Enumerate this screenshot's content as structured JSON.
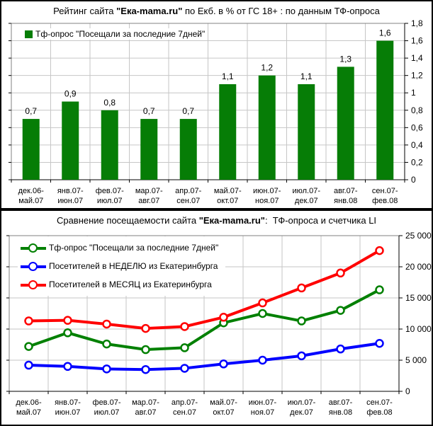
{
  "chart_data": [
    {
      "type": "bar",
      "title_prefix": "Рейтинг сайта ",
      "title_brand": "\"Ека-mama.ru\"",
      "title_suffix": " по Екб. в % от ГС 18+ : по данным ТФ-опроса",
      "legend": "Тф-опрос \"Посещали за последние 7дней\"",
      "categories": [
        "дек.06-май.07",
        "янв.07-июн.07",
        "фев.07-июл.07",
        "мар.07-авг.07",
        "апр.07-сен.07",
        "май.07-окт.07",
        "июн.07-ноя.07",
        "июл.07-дек.07",
        "авг.07-янв.08",
        "сен.07-фев.08"
      ],
      "values": [
        0.7,
        0.9,
        0.8,
        0.7,
        0.7,
        1.1,
        1.2,
        1.1,
        1.3,
        1.6
      ],
      "value_labels": [
        "0,7",
        "0,9",
        "0,8",
        "0,7",
        "0,7",
        "1,1",
        "1,2",
        "1,1",
        "1,3",
        "1,6"
      ],
      "ylabel_side": "right",
      "ylim": [
        0,
        1.8
      ],
      "ytick_labels": [
        "0",
        "0,2",
        "0,4",
        "0,6",
        "0,8",
        "1",
        "1,2",
        "1,4",
        "1,6",
        "1,8"
      ],
      "bar_color": "#067d06",
      "grid": "on"
    },
    {
      "type": "line",
      "title_prefix": "Сравнение посещаемости сайта ",
      "title_brand": "\"Ека-mama.ru\"",
      "title_suffix": ":  ТФ-опроса и счетчика LI",
      "categories": [
        "дек.06-май.07",
        "янв.07-июн.07",
        "фев.07-июл.07",
        "мар.07-авг.07",
        "апр.07-сен.07",
        "май.07-окт.07",
        "июн.07-ноя.07",
        "июл.07-дек.07",
        "авг.07-янв.08",
        "сен.07-фев.08"
      ],
      "series": [
        {
          "name": "Тф-опрос \"Посещали за последние 7дней\"",
          "color": "#008000",
          "values": [
            7200,
            9400,
            7600,
            6700,
            7000,
            11000,
            12500,
            11300,
            13000,
            16300
          ]
        },
        {
          "name": "Посетителей в НЕДЕЛЮ из Екатеринбурга",
          "color": "#0000ff",
          "values": [
            4200,
            4000,
            3600,
            3500,
            3700,
            4400,
            5000,
            5700,
            6800,
            7700
          ]
        },
        {
          "name": "Посетителей в МЕСЯЦ из Екатеринбурга",
          "color": "#ff0000",
          "values": [
            11300,
            11400,
            10800,
            10100,
            10400,
            11900,
            14200,
            16600,
            19000,
            22600
          ]
        }
      ],
      "ylabel_side": "right",
      "ylim": [
        0,
        25000
      ],
      "ytick_labels": [
        "0",
        "5 000",
        "10 000",
        "15 000",
        "20 000",
        "25 000"
      ],
      "legend_position": "top-left",
      "grid": "on",
      "marker": "open-circle"
    }
  ]
}
